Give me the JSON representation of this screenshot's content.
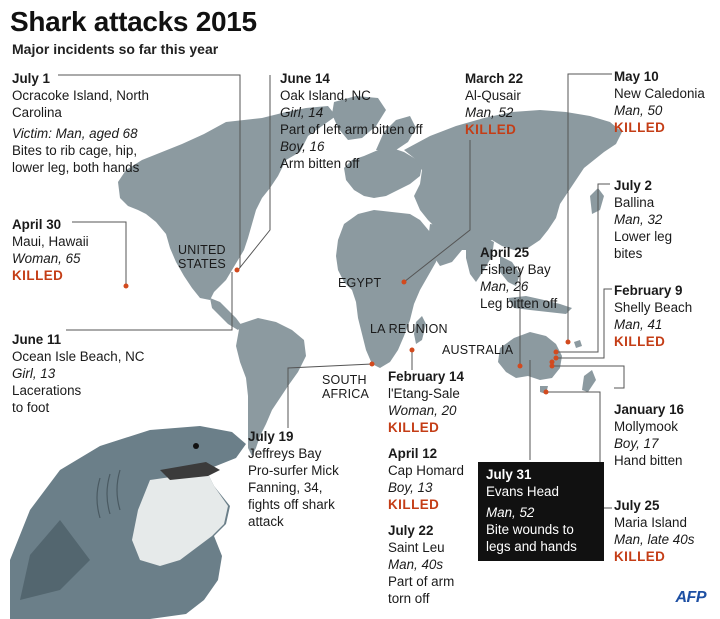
{
  "header": {
    "title": "Shark attacks 2015",
    "subtitle": "Major incidents so far this year"
  },
  "countries": {
    "united_states": "UNITED STATES",
    "egypt": "EGYPT",
    "la_reunion": "LA REUNION",
    "australia": "AUSTRALIA",
    "south_africa": "SOUTH AFRICA"
  },
  "incidents": {
    "ocracoke": {
      "date": "July 1",
      "place": "Ocracoke Island, North Carolina",
      "victim": "Victim: Man, aged 68",
      "injury": "Bites to rib cage, hip, lower leg, both hands"
    },
    "maui": {
      "date": "April 30",
      "place": "Maui, Hawaii",
      "victim": "Woman, 65",
      "killed": "KILLED"
    },
    "ocean_isle": {
      "date": "June 11",
      "place": "Ocean Isle Beach, NC",
      "victim": "Girl, 13",
      "injury": "Lacerations to foot"
    },
    "oak_island": {
      "date": "June 14",
      "place": "Oak Island, NC",
      "victim": "Girl, 14",
      "injury": "Part of left arm bitten off",
      "victim2": "Boy, 16",
      "injury2": "Arm bitten off"
    },
    "al_qusair": {
      "date": "March 22",
      "place": "Al-Qusair",
      "victim": "Man, 52",
      "killed": "KILLED"
    },
    "new_caledonia": {
      "date": "May 10",
      "place": "New Caledonia",
      "victim": "Man, 50",
      "killed": "KILLED"
    },
    "ballina": {
      "date": "July 2",
      "place": "Ballina",
      "victim": "Man, 32",
      "injury": "Lower leg bites"
    },
    "fishery_bay": {
      "date": "April 25",
      "place": "Fishery Bay",
      "victim": "Man, 26",
      "injury": "Leg bitten off"
    },
    "shelly_beach": {
      "date": "February 9",
      "place": "Shelly Beach",
      "victim": "Man, 41",
      "killed": "KILLED"
    },
    "etang_sale": {
      "date": "February 14",
      "place": "l'Etang-Sale",
      "victim": "Woman, 20",
      "killed": "KILLED"
    },
    "cap_homard": {
      "date": "April 12",
      "place": "Cap Homard",
      "victim": "Boy, 13",
      "killed": "KILLED"
    },
    "saint_leu": {
      "date": "July 22",
      "place": "Saint Leu",
      "victim": "Man, 40s",
      "injury": "Part of arm torn off"
    },
    "jeffreys_bay": {
      "date": "July 19",
      "place": "Jeffreys Bay",
      "injury": "Pro-surfer Mick Fanning, 34, fights off shark attack"
    },
    "mollymook": {
      "date": "January 16",
      "place": "Mollymook",
      "victim": "Boy, 17",
      "injury": "Hand bitten"
    },
    "evans_head": {
      "date": "July 31",
      "place": "Evans Head",
      "victim": "Man, 52",
      "injury": "Bite wounds to legs and hands"
    },
    "maria_island": {
      "date": "July 25",
      "place": "Maria Island",
      "victim": "Man, late 40s",
      "killed": "KILLED"
    }
  },
  "credit": "AFP",
  "colors": {
    "land": "#8c9aa0",
    "killed": "#c43d16",
    "marker": "#d24a1e",
    "leader": "#555555",
    "shark_body": "#6b7f89",
    "shark_belly": "#e9ecec"
  }
}
